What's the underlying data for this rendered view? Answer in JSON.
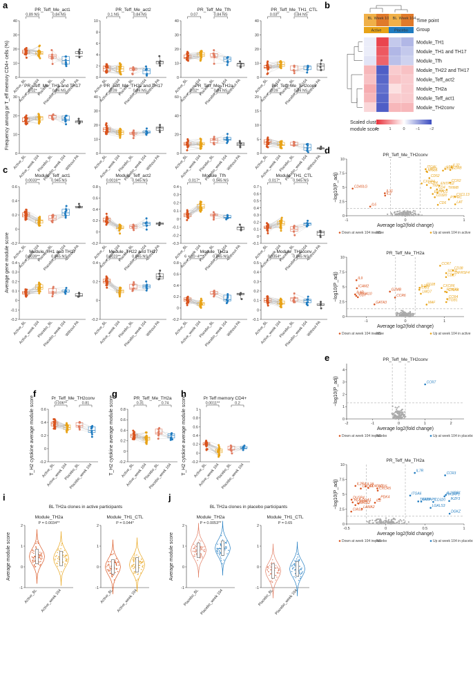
{
  "colors": {
    "active_bl": "#d9531e",
    "active_wk": "#e8a317",
    "placebo_bl": "#e07a5f",
    "placebo_wk": "#1f7bc0",
    "without_pa": "#555555",
    "down": "#d9531e",
    "up_active": "#e8a317",
    "up_placebo": "#1f7bc0",
    "ns": "#aaaaaa",
    "heat_red": "#e8303a",
    "heat_blue": "#3b4cc0"
  },
  "group_labels_5": [
    "Active_BL",
    "Active_week 104",
    "Placebo_BL",
    "Placebo_week 104",
    "Without PA"
  ],
  "group_labels_4": [
    "Active_BL",
    "Active_week 104",
    "Placebo_BL",
    "Placebo_week 104"
  ],
  "panel_letters": [
    "a",
    "b",
    "c",
    "d",
    "e",
    "f",
    "g",
    "h",
    "i",
    "j"
  ],
  "axis_labels": {
    "a_y": "Frequency among pr T_eff memory CD4+ cells (%)",
    "c_y": "Average gene module score",
    "fgh_y": "T_H2 cytokine average module score",
    "ij_y": "Average module score",
    "volcano_x": "Average log2(fold change)",
    "volcano_y": "−log10(P_adj)"
  },
  "chart_data": [
    {
      "panel": "a",
      "type": "scatter",
      "subplots": [
        {
          "title": "PR_Teff_Me_act1",
          "ylim": [
            0,
            40
          ],
          "yticks": [
            0,
            10,
            20,
            30,
            40
          ],
          "p1": "0.89 NS",
          "p2": "0.84 NS",
          "medians": [
            18,
            17,
            15,
            12,
            15
          ]
        },
        {
          "title": "PR_Teff_Me_act2",
          "ylim": [
            0,
            10
          ],
          "yticks": [
            0,
            2,
            4,
            6,
            8,
            10
          ],
          "p1": "0.1 NS",
          "p2": "0.84 NS",
          "medians": [
            1.6,
            1.5,
            1.6,
            1.2,
            2.8
          ]
        },
        {
          "title": "PR_Teff_Me_Tfh",
          "ylim": [
            0,
            40
          ],
          "yticks": [
            0,
            10,
            20,
            30,
            40
          ],
          "p1": "0.07",
          "p2": "0.84 NS",
          "medians": [
            14,
            16,
            14,
            13,
            10
          ]
        },
        {
          "title": "PR_Teff_Me_TH1_CTL",
          "ylim": [
            0,
            40
          ],
          "yticks": [
            0,
            10,
            20,
            30,
            40
          ],
          "p1": "0.03*",
          "p2": "0.84 NS",
          "medians": [
            7,
            9,
            5,
            8,
            8
          ]
        },
        {
          "title": "PR_Teff_Me_TH1 and TH17",
          "ylim": [
            0,
            30
          ],
          "yticks": [
            0,
            10,
            20,
            30
          ],
          "p1": "0.02*",
          "p2": "0.84 NS",
          "medians": [
            17,
            19,
            20,
            18,
            17
          ]
        },
        {
          "title": "PR_Teff_Me_TH22 and TH17",
          "ylim": [
            0,
            40
          ],
          "yticks": [
            0,
            10,
            20,
            30,
            40
          ],
          "p1": "0.09",
          "p2": "0.84 NS",
          "medians": [
            17,
            15,
            14,
            15,
            18
          ]
        },
        {
          "title": "PR_Teff_Me_TH2a",
          "ylim": [
            0,
            60
          ],
          "yticks": [
            0,
            20,
            40,
            60
          ],
          "p1": "0.02*",
          "p2": "0.84 NS",
          "medians": [
            10,
            10,
            14,
            15,
            10
          ]
        },
        {
          "title": "PR_Teff_Me_TH2conv",
          "ylim": [
            0,
            20
          ],
          "yticks": [
            0,
            5,
            10,
            15,
            20
          ],
          "p1": "0.09",
          "p2": "0.84 NS",
          "medians": [
            4,
            3,
            3,
            2,
            2
          ]
        }
      ]
    },
    {
      "panel": "b",
      "type": "heatmap",
      "columns": [
        "BL",
        "Week 104",
        "BL",
        "Week 104"
      ],
      "time_point_label": "Time point",
      "group_label": "Group",
      "groups": [
        "Active",
        "Placebo"
      ],
      "rows": [
        "Module_TH1",
        "Module_TH1 and TH17",
        "Module_Tfh",
        "Module_TH22 and TH17",
        "Module_Teff_act2",
        "Module_TH2a",
        "Module_Teff_act1",
        "Module_TH2conv"
      ],
      "values": [
        [
          -0.2,
          1.8,
          -0.6,
          -0.8
        ],
        [
          -0.2,
          1.6,
          -0.8,
          -0.6
        ],
        [
          -0.3,
          1.5,
          -0.7,
          -0.5
        ],
        [
          0.7,
          -1.8,
          0.5,
          0.6
        ],
        [
          0.6,
          -1.7,
          0.6,
          0.5
        ],
        [
          0.8,
          -1.6,
          0.3,
          0.5
        ],
        [
          0.7,
          -1.7,
          0.5,
          0.5
        ],
        [
          0.4,
          -1.8,
          0.7,
          0.7
        ]
      ],
      "scale_label": "Scaled cluster module score",
      "scale_ticks": [
        "2",
        "1",
        "0",
        "−1",
        "−2"
      ]
    },
    {
      "panel": "c",
      "type": "scatter",
      "subplots": [
        {
          "title": "Module_Teff_act1",
          "ylim": [
            -0.2,
            0.6
          ],
          "yticks": [
            -0.2,
            0,
            0.2,
            0.4,
            0.6
          ],
          "p1": "0.0033**",
          "p2": "0.945 NS",
          "medians": [
            0.2,
            0.12,
            0.15,
            0.23,
            0.3
          ]
        },
        {
          "title": "Module_Teff_act2",
          "ylim": [
            -0.2,
            0.8
          ],
          "yticks": [
            -0.2,
            0,
            0.2,
            0.4,
            0.6,
            0.8
          ],
          "p1": "0.0016**",
          "p2": "0.945 NS",
          "medians": [
            0.2,
            0.07,
            0.1,
            0.15,
            0.15
          ]
        },
        {
          "title": "Module_Tfh",
          "ylim": [
            -0.3,
            0.4
          ],
          "yticks": [
            -0.3,
            -0.2,
            -0.1,
            0,
            0.1,
            0.2,
            0.3,
            0.4
          ],
          "p1": "0.017*",
          "p2": "0.945 NS",
          "medians": [
            0.05,
            0.15,
            0.05,
            0.02,
            -0.1
          ]
        },
        {
          "title": "Module_TH1_CTL",
          "ylim": [
            -0.1,
            0.7
          ],
          "yticks": [
            -0.1,
            0,
            0.1,
            0.2,
            0.3,
            0.4,
            0.5,
            0.6,
            0.7
          ],
          "p1": "0.017*",
          "p2": "0.945 NS",
          "medians": [
            0.12,
            0.18,
            0.1,
            0.18,
            0.05
          ]
        },
        {
          "title": "Module_TH1 and TH17",
          "ylim": [
            -0.2,
            0.4
          ],
          "yticks": [
            -0.2,
            -0.1,
            0,
            0.1,
            0.2,
            0.3,
            0.4
          ],
          "p1": "0.0039**",
          "p2": "0.945 NS",
          "medians": [
            0.08,
            0.14,
            0.09,
            0.09,
            0.05
          ]
        },
        {
          "title": "Module_TH22 and TH17",
          "ylim": [
            -0.2,
            0.4
          ],
          "yticks": [
            -0.2,
            0,
            0.2,
            0.4
          ],
          "p1": "0.0023**",
          "p2": "0.945 NS",
          "medians": [
            0.2,
            0.1,
            0.13,
            0.15,
            0.25
          ]
        },
        {
          "title": "Module_TH2a",
          "ylim": [
            -0.2,
            0.8
          ],
          "yticks": [
            -0.2,
            0,
            0.2,
            0.4,
            0.6,
            0.8
          ],
          "p1": "6 × 10−4***",
          "p2": "0.945 NS",
          "medians": [
            0.15,
            0.08,
            0.25,
            0.15,
            0.25
          ]
        },
        {
          "title": "Module_TH2conv",
          "ylim": [
            -0.1,
            0.5
          ],
          "yticks": [
            -0.1,
            0,
            0.1,
            0.2,
            0.3,
            0.4,
            0.5
          ],
          "p1": "0.0354*",
          "p2": "0.945 NS",
          "medians": [
            0.1,
            0.07,
            0.12,
            0.1,
            0.05
          ]
        }
      ]
    },
    {
      "panel": "d",
      "type": "scatter",
      "subplots": [
        {
          "title": "PR_Teff_Me_TH2conv",
          "xlim": [
            -1,
            1
          ],
          "xticks": [
            -1,
            0,
            1
          ],
          "ylim": [
            0,
            10
          ],
          "yticks": [
            0,
            2.5,
            5,
            7.5,
            10
          ],
          "down_genes": [
            "IL6",
            "IL2",
            "IL31",
            "CD40LG"
          ],
          "up_genes": [
            "GZMB",
            "CD320",
            "TRIM8",
            "LTB",
            "ITK",
            "LAT",
            "CD4",
            "CXCR4",
            "ENTPD1",
            "IL32",
            "ITGAL",
            "ENTPD2",
            "CCR4",
            "CXCL13",
            "CCR2",
            "CCL5",
            "CD28",
            "CD6",
            "LAG3",
            "TNF",
            "CD52",
            "PTPRC"
          ],
          "legend": [
            "Down at week 104 in active",
            "NS",
            "Up at week 104 in active"
          ]
        },
        {
          "title": "PR_Teff_Me_TH2a",
          "xlim": [
            -1.5,
            1.5
          ],
          "xticks": [
            -1,
            0,
            1
          ],
          "ylim": [
            0,
            10
          ],
          "yticks": [
            0,
            2.5,
            5,
            7.5,
            10
          ],
          "down_genes": [
            "IL9",
            "S100A10",
            "GZMB",
            "IL4R",
            "ICAM2",
            "CCR6",
            "CD7",
            "GATA3"
          ],
          "up_genes": [
            "CCR7",
            "SOX4",
            "ITGB1",
            "LMO7",
            "CD38",
            "MAF",
            "CXCR6",
            "ICOS",
            "CD28",
            "CD27",
            "CCR4",
            "FOXP3",
            "TNFRSF4",
            "IL1R1",
            "CTLA4"
          ],
          "legend": [
            "Down at week 104 in active",
            "NS",
            "Up at week 104 in active"
          ]
        }
      ]
    },
    {
      "panel": "e",
      "type": "scatter",
      "subplots": [
        {
          "title": "PR_Teff_Me_TH2conv",
          "xlim": [
            -2,
            2.5
          ],
          "xticks": [
            -2,
            -1,
            0,
            1,
            2
          ],
          "ylim": [
            0,
            4.5
          ],
          "yticks": [
            0,
            1,
            2,
            3,
            4
          ],
          "down_genes": [],
          "up_genes": [
            "CCR7"
          ],
          "legend": [
            "Down at week 104 in placebo",
            "NS",
            "Up at week 104 in placebo"
          ]
        },
        {
          "title": "PR_Teff_Me_TH2a",
          "xlim": [
            -0.5,
            1.0
          ],
          "xticks": [
            -0.5,
            0,
            0.5,
            1.0
          ],
          "ylim": [
            0,
            10
          ],
          "yticks": [
            0,
            2.5,
            5,
            7.5,
            10
          ],
          "down_genes": [
            "IL18",
            "LRRC32",
            "CTLA4",
            "LAMA2",
            "CXCR5",
            "DUSP4",
            "CIAS1",
            "IL2RA",
            "HLA-DQA1",
            "PDK4",
            "FOS",
            "ICOS",
            "CD40LG",
            "IL2"
          ],
          "up_genes": [
            "CCR3",
            "DGKZ",
            "PIK3AP1",
            "IL18RB1",
            "IL7R",
            "GIMAP5",
            "ITGA6",
            "LGALS3",
            "IKZF3",
            "CD320",
            "TRAT1"
          ],
          "legend": [
            "Down at week 104 in placebo",
            "NS",
            "Up at week 104 in placebo"
          ]
        }
      ]
    },
    {
      "panel": "f",
      "type": "scatter",
      "title": "Pr_Teff_Me_TH2conv",
      "ylim": [
        -0.2,
        0.6
      ],
      "yticks": [
        -0.2,
        0,
        0.2,
        0.4,
        0.6
      ],
      "p1": "0.006**",
      "p2": "0.81",
      "medians": [
        0.38,
        0.32,
        0.35,
        0.28
      ]
    },
    {
      "panel": "g",
      "type": "scatter",
      "title": "PR_Teff_Me_TH2a",
      "ylim": [
        -0.2,
        0.8
      ],
      "yticks": [
        -0.2,
        0,
        0.2,
        0.4,
        0.6,
        0.8
      ],
      "p1": "0.31",
      "p2": "0.74",
      "medians": [
        0.3,
        0.25,
        0.35,
        0.3
      ]
    },
    {
      "panel": "h",
      "type": "scatter",
      "title": "Pr Teff memory CD4+",
      "ylim": [
        -0.2,
        1.0
      ],
      "yticks": [
        -0.2,
        0,
        0.2,
        0.4,
        0.6,
        0.8,
        1.0
      ],
      "p1": "0.0011**",
      "p2": "0.2",
      "medians": [
        0.2,
        0.05,
        0.08,
        0.1
      ]
    },
    {
      "panel": "i",
      "type": "violin",
      "suptitle": "BL TH2a clones in active participants",
      "subplots": [
        {
          "title": "Module_TH2a",
          "p": "P = 0.0034**",
          "ylim": [
            -1,
            2
          ],
          "yticks": [
            -1,
            0,
            1,
            2
          ],
          "groups": [
            "Active_BL",
            "Active_week 104"
          ],
          "medians": [
            0.5,
            0.4
          ]
        },
        {
          "title": "Module_TH1_CTL",
          "p": "P = 0.044*",
          "ylim": [
            -1,
            2
          ],
          "yticks": [
            -1,
            0,
            1,
            2
          ],
          "groups": [
            "Active_BL",
            "Active_week 104"
          ],
          "medians": [
            0.0,
            0.1
          ]
        }
      ]
    },
    {
      "panel": "j",
      "type": "violin",
      "suptitle": "BL TH2a clones in placebo participants",
      "subplots": [
        {
          "title": "Module_TH2a",
          "p": "P = 0.0053**",
          "ylim": [
            -1,
            2
          ],
          "yticks": [
            -1,
            0,
            1,
            2
          ],
          "groups": [
            "Placebo_BL",
            "Placebo_week 104"
          ],
          "medians": [
            0.8,
            0.9
          ]
        },
        {
          "title": "Module_TH1_CTL",
          "p": "P = 0.65",
          "ylim": [
            -1,
            2
          ],
          "yticks": [
            -1,
            0,
            1,
            2
          ],
          "groups": [
            "Placebo_BL",
            "Placebo_week 104"
          ],
          "medians": [
            -0.2,
            -0.1
          ]
        }
      ]
    }
  ]
}
